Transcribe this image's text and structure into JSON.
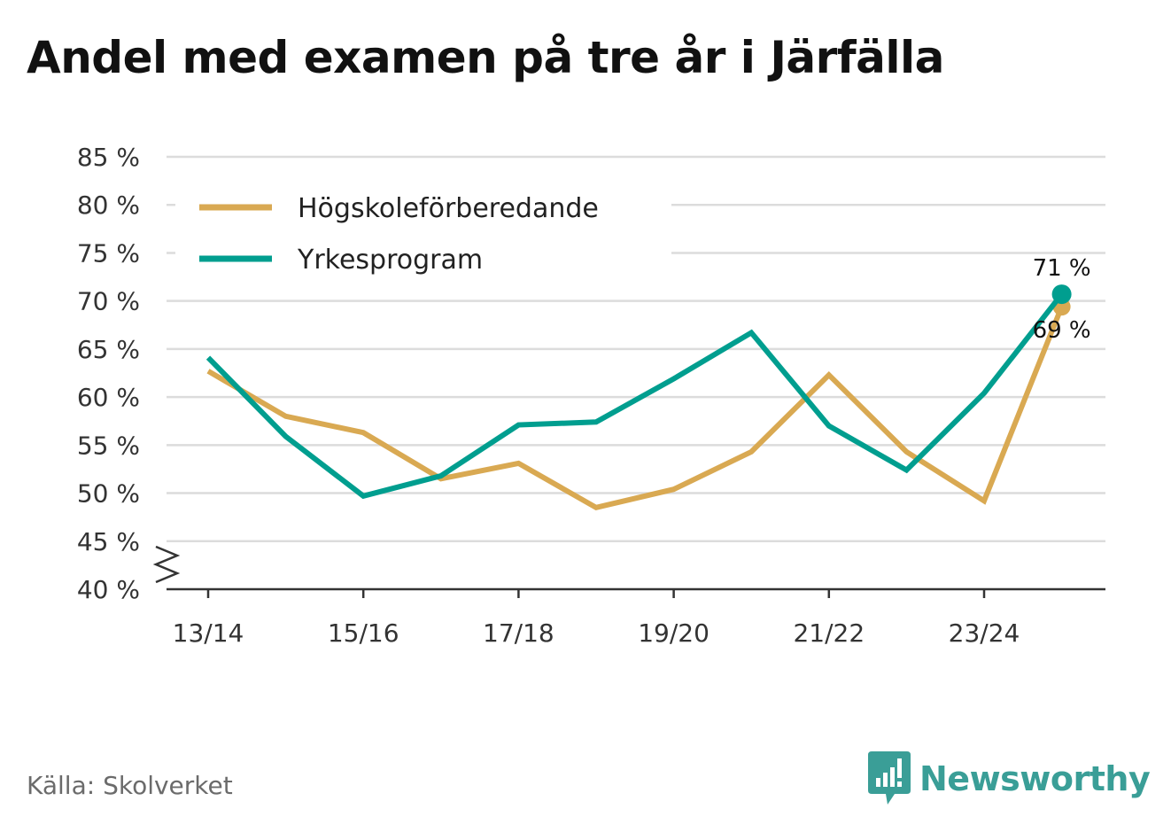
{
  "chart_data": {
    "type": "line",
    "title": "Andel med examen på tre år i Järfälla",
    "x": [
      "13/14",
      "14/15",
      "15/16",
      "16/17",
      "17/18",
      "18/19",
      "19/20",
      "20/21",
      "21/22",
      "22/23",
      "23/24",
      "24/25"
    ],
    "xtick_labels": [
      "13/14",
      "15/16",
      "17/18",
      "19/20",
      "21/22",
      "23/24"
    ],
    "ytick_values": [
      40,
      45,
      50,
      55,
      60,
      65,
      70,
      75,
      80,
      85
    ],
    "ytick_labels": [
      "40 %",
      "45 %",
      "50 %",
      "55 %",
      "60 %",
      "65 %",
      "70 %",
      "75 %",
      "80 %",
      "85 %"
    ],
    "ylim": [
      40,
      85
    ],
    "xlabel": "",
    "ylabel": "",
    "grid": true,
    "legend_position": "top-left",
    "y_axis_break": true,
    "series": [
      {
        "name": "Högskoleförberedande",
        "color": "#d9a952",
        "values": [
          62.7,
          58.0,
          56.3,
          51.5,
          53.1,
          48.5,
          50.4,
          54.3,
          62.3,
          54.3,
          49.2,
          69.4
        ],
        "end_label": "69 %"
      },
      {
        "name": "Yrkesprogram",
        "color": "#009e8f",
        "values": [
          64.1,
          55.9,
          49.7,
          51.8,
          57.1,
          57.4,
          61.9,
          66.7,
          57.0,
          52.4,
          60.4,
          70.7
        ],
        "end_label": "71 %"
      }
    ]
  },
  "source": "Källa: Skolverket",
  "brand": {
    "name": "Newsworthy",
    "color": "#3a9e97",
    "icon": "newsworthy-logo-icon"
  }
}
